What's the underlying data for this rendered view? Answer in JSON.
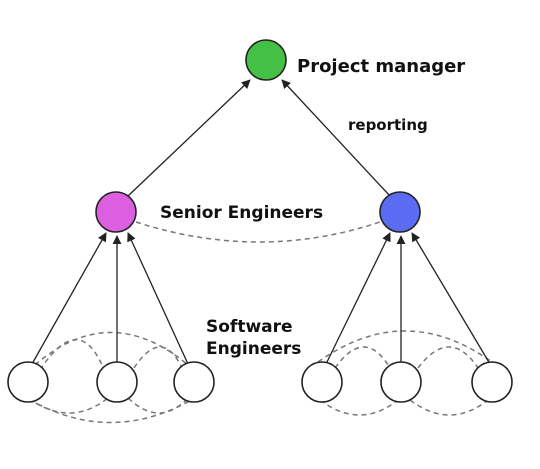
{
  "labels": {
    "project_manager": "Project manager",
    "reporting": "reporting",
    "senior_engineers": "Senior Engineers",
    "software_line1": "Software",
    "software_line2": "Engineers"
  },
  "colors": {
    "manager": "#44c145",
    "senior_left": "#dd5fe1",
    "senior_right": "#5a6cf2",
    "software": "#ffffff",
    "edge": "#222222",
    "dashed": "#777777"
  }
}
